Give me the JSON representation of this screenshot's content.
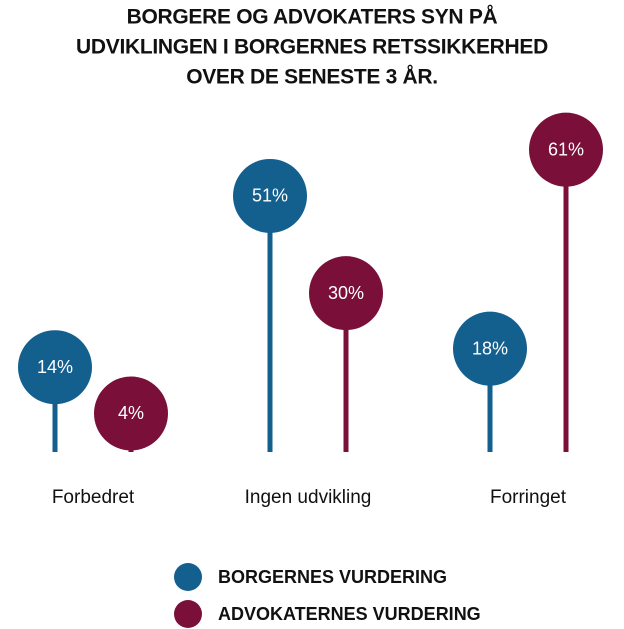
{
  "chart_data": {
    "type": "lollipop",
    "title": [
      "BORGERE OG ADVOKATERS SYN PÅ",
      "UDVIKLINGEN I BORGERNES RETSSIKKERHED",
      "OVER DE SENESTE 3 ÅR."
    ],
    "categories": [
      "Forbedret",
      "Ingen udvikling",
      "Forringet"
    ],
    "series": [
      {
        "name": "BORGERNES VURDERING",
        "color": "#135f8e",
        "values": [
          14,
          51,
          18
        ],
        "value_labels": [
          "14%",
          "51%",
          "18%"
        ]
      },
      {
        "name": "ADVOKATERNES VURDERING",
        "color": "#7a1039",
        "values": [
          4,
          30,
          61
        ],
        "value_labels": [
          "4%",
          "30%",
          "61%"
        ]
      }
    ],
    "ylim": [
      0,
      70
    ]
  }
}
